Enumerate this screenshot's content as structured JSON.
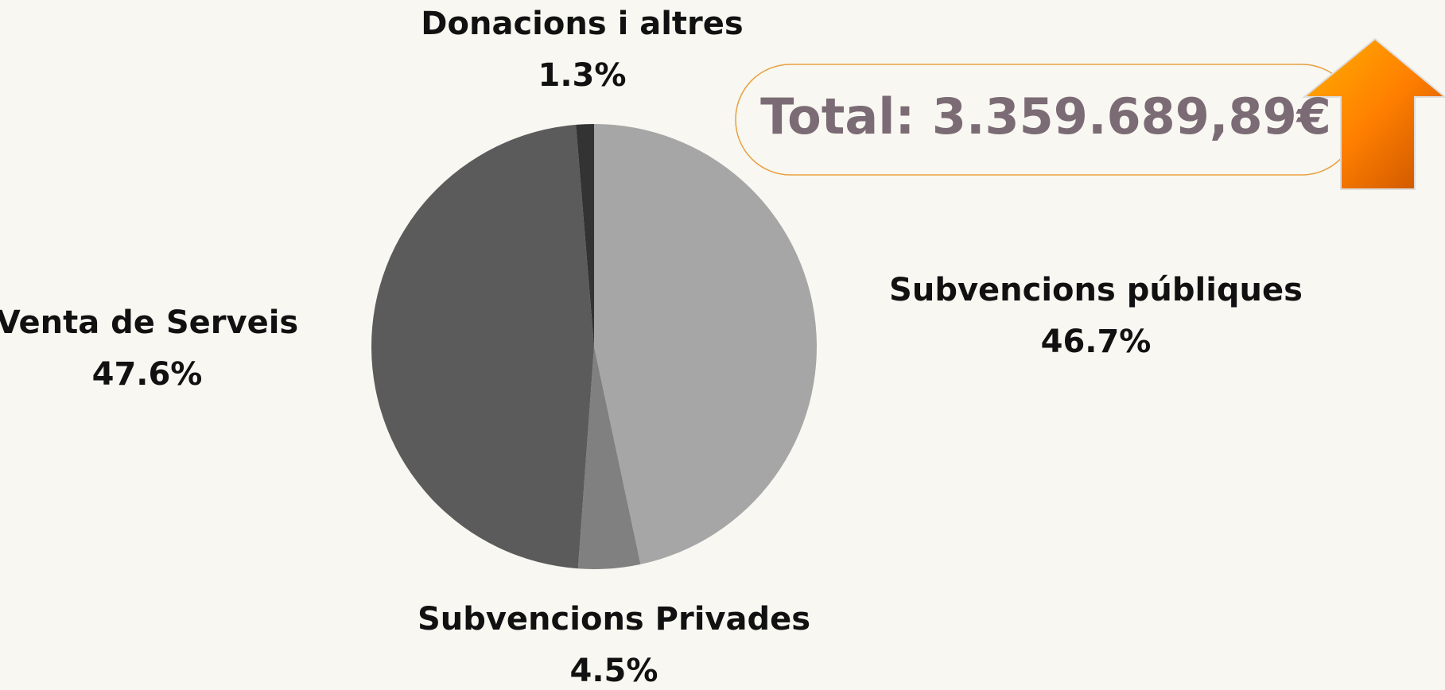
{
  "chart_data": {
    "type": "pie",
    "annotation": "Total: 3.359.689,89€",
    "categories": [
      "Subvencions públiques",
      "Subvencions Privades",
      "Venta de Serveis",
      "Donacions i altres"
    ],
    "values": [
      46.7,
      4.5,
      47.6,
      1.3
    ],
    "value_labels": [
      "46.7%",
      "4.5%",
      "47.6%",
      "1.3%"
    ],
    "colors": [
      "#a6a6a6",
      "#808080",
      "#5b5b5b",
      "#333333"
    ]
  }
}
